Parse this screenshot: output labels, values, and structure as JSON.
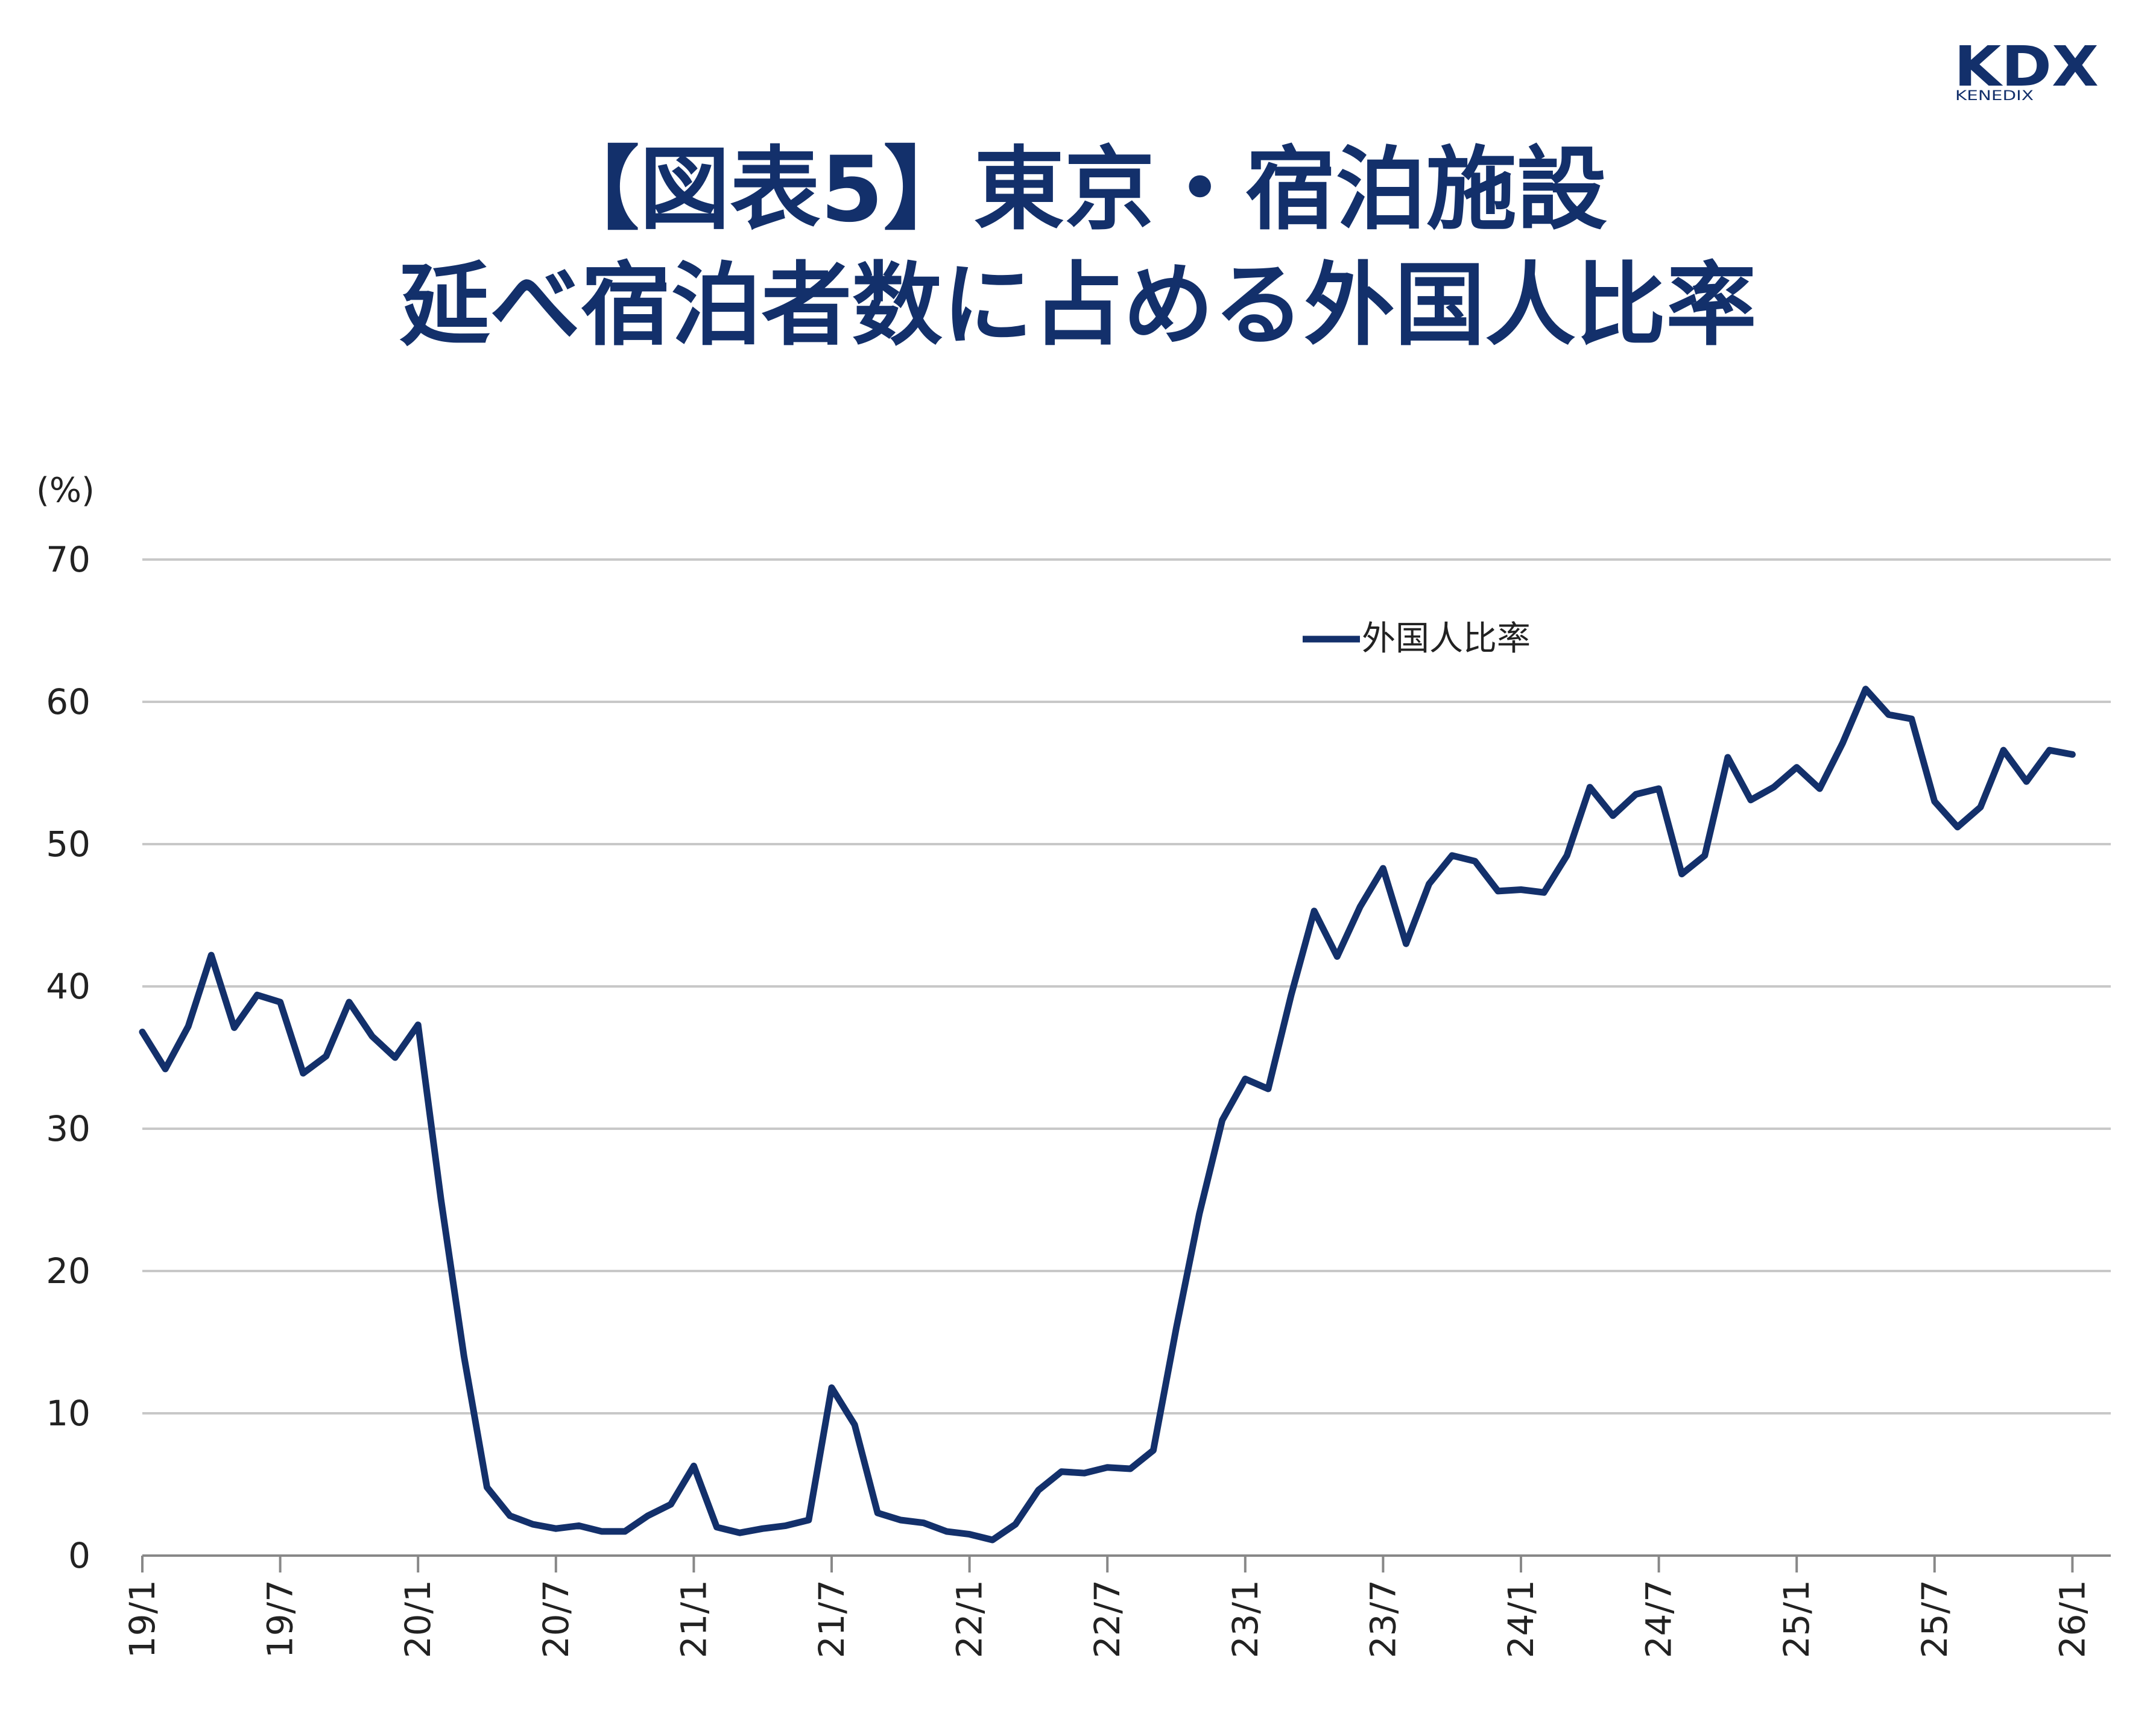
{
  "brand": {
    "logo_text": "KDX",
    "logo_subtext": "KENEDIX",
    "color": "#13306b"
  },
  "title_line1": "【図表5】東京・宿泊施設",
  "title_line2": "延べ宿泊者数に占める外国人比率",
  "chart_data": {
    "type": "line",
    "title": "【図表5】東京・宿泊施設 延べ宿泊者数に占める外国人比率",
    "ylabel": "(%)",
    "ylim": [
      0,
      70
    ],
    "yticks": [
      0,
      10,
      20,
      30,
      40,
      50,
      60,
      70
    ],
    "xtick_labels": [
      "19/1",
      "19/7",
      "20/1",
      "20/7",
      "21/1",
      "21/7",
      "22/1",
      "22/7",
      "23/1",
      "23/7",
      "24/1",
      "24/7",
      "25/1",
      "25/7",
      "26/1"
    ],
    "grid": true,
    "legend_position": "top-center",
    "line_color": "#13306b",
    "series": [
      {
        "name": "外国人比率",
        "x": [
          "19/1",
          "19/2",
          "19/3",
          "19/4",
          "19/5",
          "19/6",
          "19/7",
          "19/8",
          "19/9",
          "19/10",
          "19/11",
          "19/12",
          "20/1",
          "20/2",
          "20/3",
          "20/4",
          "20/5",
          "20/6",
          "20/7",
          "20/8",
          "20/9",
          "20/10",
          "20/11",
          "20/12",
          "21/1",
          "21/2",
          "21/3",
          "21/4",
          "21/5",
          "21/6",
          "21/7",
          "21/8",
          "21/9",
          "21/10",
          "21/11",
          "21/12",
          "22/1",
          "22/2",
          "22/3",
          "22/4",
          "22/5",
          "22/6",
          "22/7",
          "22/8",
          "22/9",
          "22/10",
          "22/11",
          "22/12",
          "23/1",
          "23/2",
          "23/3",
          "23/4",
          "23/5",
          "23/6",
          "23/7",
          "23/8",
          "23/9",
          "23/10",
          "23/11",
          "23/12",
          "24/1",
          "24/2",
          "24/3",
          "24/4",
          "24/5",
          "24/6",
          "24/7",
          "24/8",
          "24/9",
          "24/10",
          "24/11",
          "24/12",
          "25/1",
          "25/2",
          "25/3",
          "25/4",
          "25/5",
          "25/6",
          "25/7",
          "25/8",
          "25/9",
          "25/10",
          "25/11",
          "25/12",
          "26/1"
        ],
        "values": [
          36.8,
          34.2,
          37.2,
          42.2,
          37.1,
          39.4,
          38.9,
          33.9,
          35.1,
          38.9,
          36.5,
          35.0,
          37.3,
          25.0,
          14.0,
          4.8,
          2.8,
          2.2,
          1.9,
          2.1,
          1.7,
          1.7,
          2.8,
          3.6,
          6.3,
          2.0,
          1.6,
          1.9,
          2.1,
          2.5,
          11.8,
          9.2,
          3.0,
          2.5,
          2.3,
          1.7,
          1.5,
          1.1,
          2.2,
          4.6,
          5.9,
          5.8,
          6.2,
          6.1,
          7.4,
          16.0,
          24.0,
          30.6,
          33.5,
          32.8,
          39.4,
          45.3,
          42.1,
          45.6,
          48.3,
          43.0,
          47.2,
          49.2,
          48.8,
          46.7,
          46.8,
          46.6,
          49.2,
          54.0,
          52.0,
          53.5,
          53.9,
          47.9,
          49.2,
          56.1,
          53.1,
          54.0,
          55.4,
          53.9,
          57.1,
          60.9,
          59.1,
          58.8,
          53.0,
          51.2,
          52.6,
          56.6,
          54.4,
          56.6,
          56.3
        ]
      }
    ]
  }
}
